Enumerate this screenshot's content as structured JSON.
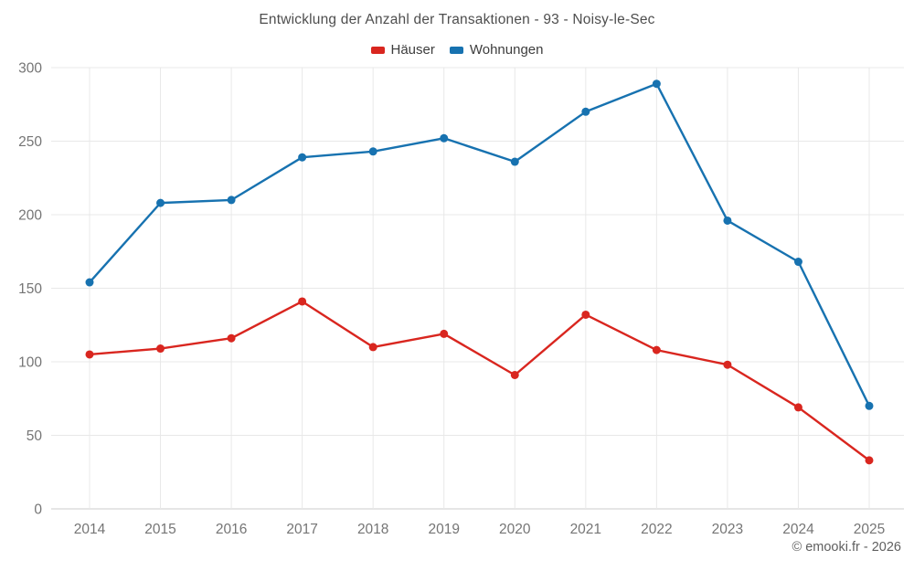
{
  "title": "Entwicklung der Anzahl der Transaktionen - 93 - Noisy-le-Sec",
  "footer": "© emooki.fr - 2026",
  "legend": {
    "items": [
      {
        "label": "Häuser",
        "color": "#d9261f"
      },
      {
        "label": "Wohnungen",
        "color": "#1772b0"
      }
    ]
  },
  "colors": {
    "haeuser": "#d9261f",
    "wohnungen": "#1772b0",
    "grid": "#e8e8e8",
    "axis": "#cdcdcd",
    "tick_label": "#757575",
    "title_text": "#4e4e4e",
    "legend_text": "#3d3d3d",
    "footer_text": "#606060",
    "background": "#ffffff"
  },
  "chart_data": {
    "type": "line",
    "title": "Entwicklung der Anzahl der Transaktionen - 93 - Noisy-le-Sec",
    "categories": [
      "2014",
      "2015",
      "2016",
      "2017",
      "2018",
      "2019",
      "2020",
      "2021",
      "2022",
      "2023",
      "2024",
      "2025"
    ],
    "series": [
      {
        "name": "Häuser",
        "color": "#d9261f",
        "values": [
          105,
          109,
          116,
          141,
          110,
          119,
          91,
          132,
          108,
          98,
          69,
          33
        ]
      },
      {
        "name": "Wohnungen",
        "color": "#1772b0",
        "values": [
          154,
          208,
          210,
          239,
          243,
          252,
          236,
          270,
          289,
          196,
          168,
          70
        ]
      }
    ],
    "xlabel": "",
    "ylabel": "",
    "ylim": [
      0,
      300
    ],
    "ytick_step": 50,
    "grid": true,
    "legend_position": "top",
    "marker": "circle"
  }
}
